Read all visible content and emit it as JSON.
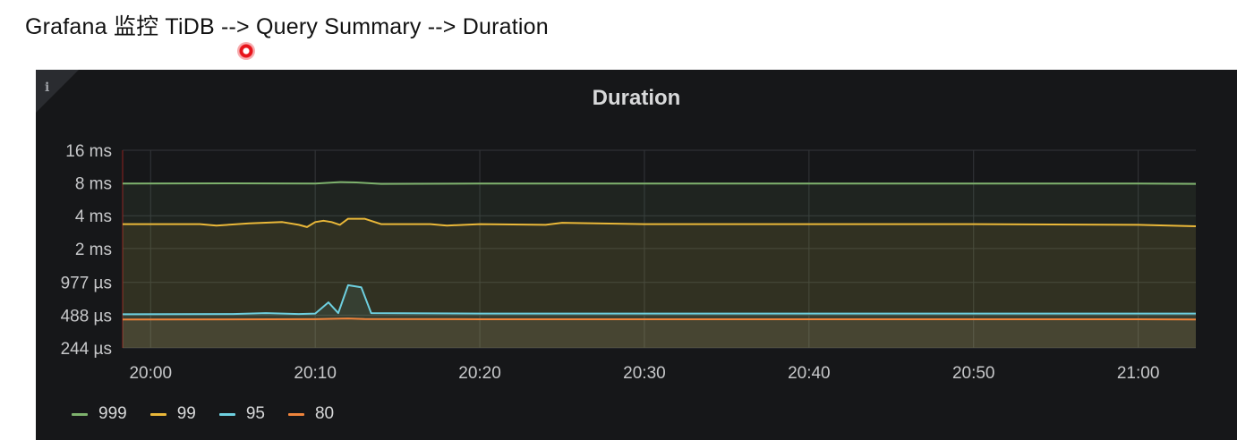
{
  "caption": "Grafana 监控 TiDB --> Query Summary --> Duration",
  "panel": {
    "info_icon": "info-icon",
    "title": "Duration"
  },
  "chart_data": {
    "type": "line",
    "title": "Duration",
    "y_scale": "log2",
    "y_ticks": [
      "16 ms",
      "8 ms",
      "4 ms",
      "2 ms",
      "977 µs",
      "488 µs",
      "244 µs"
    ],
    "y_tick_values_us": [
      16000,
      8000,
      4000,
      2000,
      977,
      488,
      244
    ],
    "ylim_us": [
      244,
      16000
    ],
    "x_ticks": [
      "20:00",
      "20:10",
      "20:20",
      "20:30",
      "20:40",
      "20:50",
      "21:00"
    ],
    "x_tick_values_min": [
      0,
      10,
      20,
      30,
      40,
      50,
      60
    ],
    "xlim_min": [
      -1.7,
      63.5
    ],
    "grid": true,
    "fill": true,
    "legend_position": "bottom-left",
    "series": [
      {
        "name": "999",
        "color": "#7eb26d",
        "points": [
          [
            -1.7,
            7900
          ],
          [
            5,
            7950
          ],
          [
            10,
            7900
          ],
          [
            11.5,
            8150
          ],
          [
            12.5,
            8100
          ],
          [
            14,
            7850
          ],
          [
            20,
            7900
          ],
          [
            30,
            7900
          ],
          [
            40,
            7900
          ],
          [
            50,
            7900
          ],
          [
            60,
            7900
          ],
          [
            63.5,
            7850
          ]
        ]
      },
      {
        "name": "99",
        "color": "#eab839",
        "points": [
          [
            -1.7,
            3350
          ],
          [
            3,
            3350
          ],
          [
            4,
            3250
          ],
          [
            6,
            3400
          ],
          [
            8,
            3500
          ],
          [
            9,
            3300
          ],
          [
            9.5,
            3150
          ],
          [
            10,
            3500
          ],
          [
            10.5,
            3600
          ],
          [
            11,
            3500
          ],
          [
            11.5,
            3300
          ],
          [
            12,
            3750
          ],
          [
            13,
            3750
          ],
          [
            14,
            3350
          ],
          [
            17,
            3350
          ],
          [
            18,
            3250
          ],
          [
            20,
            3350
          ],
          [
            24,
            3300
          ],
          [
            25,
            3450
          ],
          [
            30,
            3350
          ],
          [
            40,
            3350
          ],
          [
            50,
            3350
          ],
          [
            60,
            3300
          ],
          [
            63.5,
            3200
          ]
        ]
      },
      {
        "name": "95",
        "color": "#6ed0e0",
        "points": [
          [
            -1.7,
            497
          ],
          [
            5,
            500
          ],
          [
            7,
            510
          ],
          [
            9,
            500
          ],
          [
            10,
            505
          ],
          [
            10.8,
            640
          ],
          [
            11.4,
            510
          ],
          [
            12,
            920
          ],
          [
            12.8,
            880
          ],
          [
            13.4,
            510
          ],
          [
            20,
            505
          ],
          [
            30,
            505
          ],
          [
            40,
            505
          ],
          [
            50,
            505
          ],
          [
            60,
            505
          ],
          [
            63.5,
            505
          ]
        ]
      },
      {
        "name": "80",
        "color": "#ef843c",
        "points": [
          [
            -1.7,
            445
          ],
          [
            10,
            448
          ],
          [
            12,
            455
          ],
          [
            13,
            450
          ],
          [
            20,
            447
          ],
          [
            30,
            447
          ],
          [
            40,
            447
          ],
          [
            50,
            447
          ],
          [
            60,
            447
          ],
          [
            63.5,
            445
          ]
        ]
      }
    ]
  }
}
